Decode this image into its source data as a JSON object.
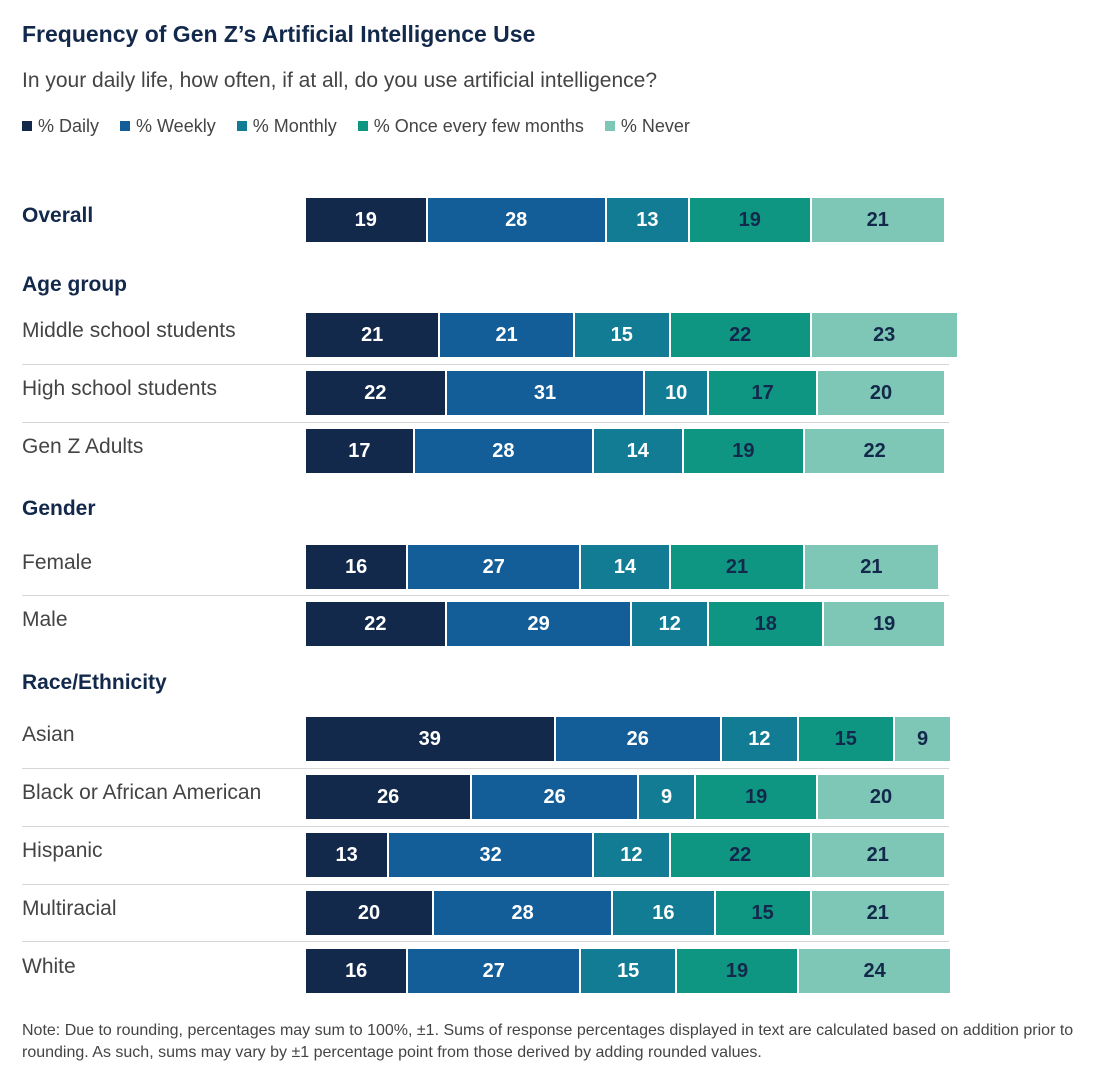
{
  "title": "Frequency of Gen Z’s Artificial Intelligence Use",
  "subtitle": "In your daily life, how often, if at all, do you use artificial intelligence?",
  "note": "Note: Due to rounding, percentages may sum to 100%, ±1. Sums of response percentages displayed in text are calculated based on addition prior to rounding. As such, sums may vary by ±1 percentage point from those derived by adding rounded values.",
  "chart_data": {
    "type": "bar",
    "orientation": "horizontal",
    "stacked": true,
    "title": "Frequency of Gen Z’s Artificial Intelligence Use",
    "subtitle": "In your daily life, how often, if at all, do you use artificial intelligence?",
    "legend_position": "top-left",
    "grid": false,
    "series": [
      {
        "name": "% Daily",
        "color": "#13294b",
        "text_color": "#ffffff"
      },
      {
        "name": "% Weekly",
        "color": "#135d98",
        "text_color": "#ffffff"
      },
      {
        "name": "% Monthly",
        "color": "#117c93",
        "text_color": "#ffffff"
      },
      {
        "name": "% Once every few months",
        "color": "#0e9682",
        "text_color": "#13294b"
      },
      {
        "name": "% Never",
        "color": "#7ec6b6",
        "text_color": "#13294b"
      }
    ],
    "rows": [
      {
        "label": "Overall",
        "bold": true,
        "values": [
          19,
          28,
          13,
          19,
          21
        ]
      },
      {
        "heading": "Age group"
      },
      {
        "label": "Middle school students",
        "values": [
          21,
          21,
          15,
          22,
          23
        ]
      },
      {
        "label": "High school students",
        "values": [
          22,
          31,
          10,
          17,
          20
        ]
      },
      {
        "label": "Gen Z Adults",
        "values": [
          17,
          28,
          14,
          19,
          22
        ]
      },
      {
        "heading": "Gender"
      },
      {
        "label": "Female",
        "values": [
          16,
          27,
          14,
          21,
          21
        ]
      },
      {
        "label": "Male",
        "values": [
          22,
          29,
          12,
          18,
          19
        ]
      },
      {
        "heading": "Race/Ethnicity"
      },
      {
        "label": "Asian",
        "values": [
          39,
          26,
          12,
          15,
          9
        ]
      },
      {
        "label": "Black or African American",
        "values": [
          26,
          26,
          9,
          19,
          20
        ]
      },
      {
        "label": "Hispanic",
        "values": [
          13,
          32,
          12,
          22,
          21
        ]
      },
      {
        "label": "Multiracial",
        "values": [
          20,
          28,
          16,
          15,
          21
        ]
      },
      {
        "label": "White",
        "values": [
          16,
          27,
          15,
          19,
          24
        ]
      }
    ]
  }
}
